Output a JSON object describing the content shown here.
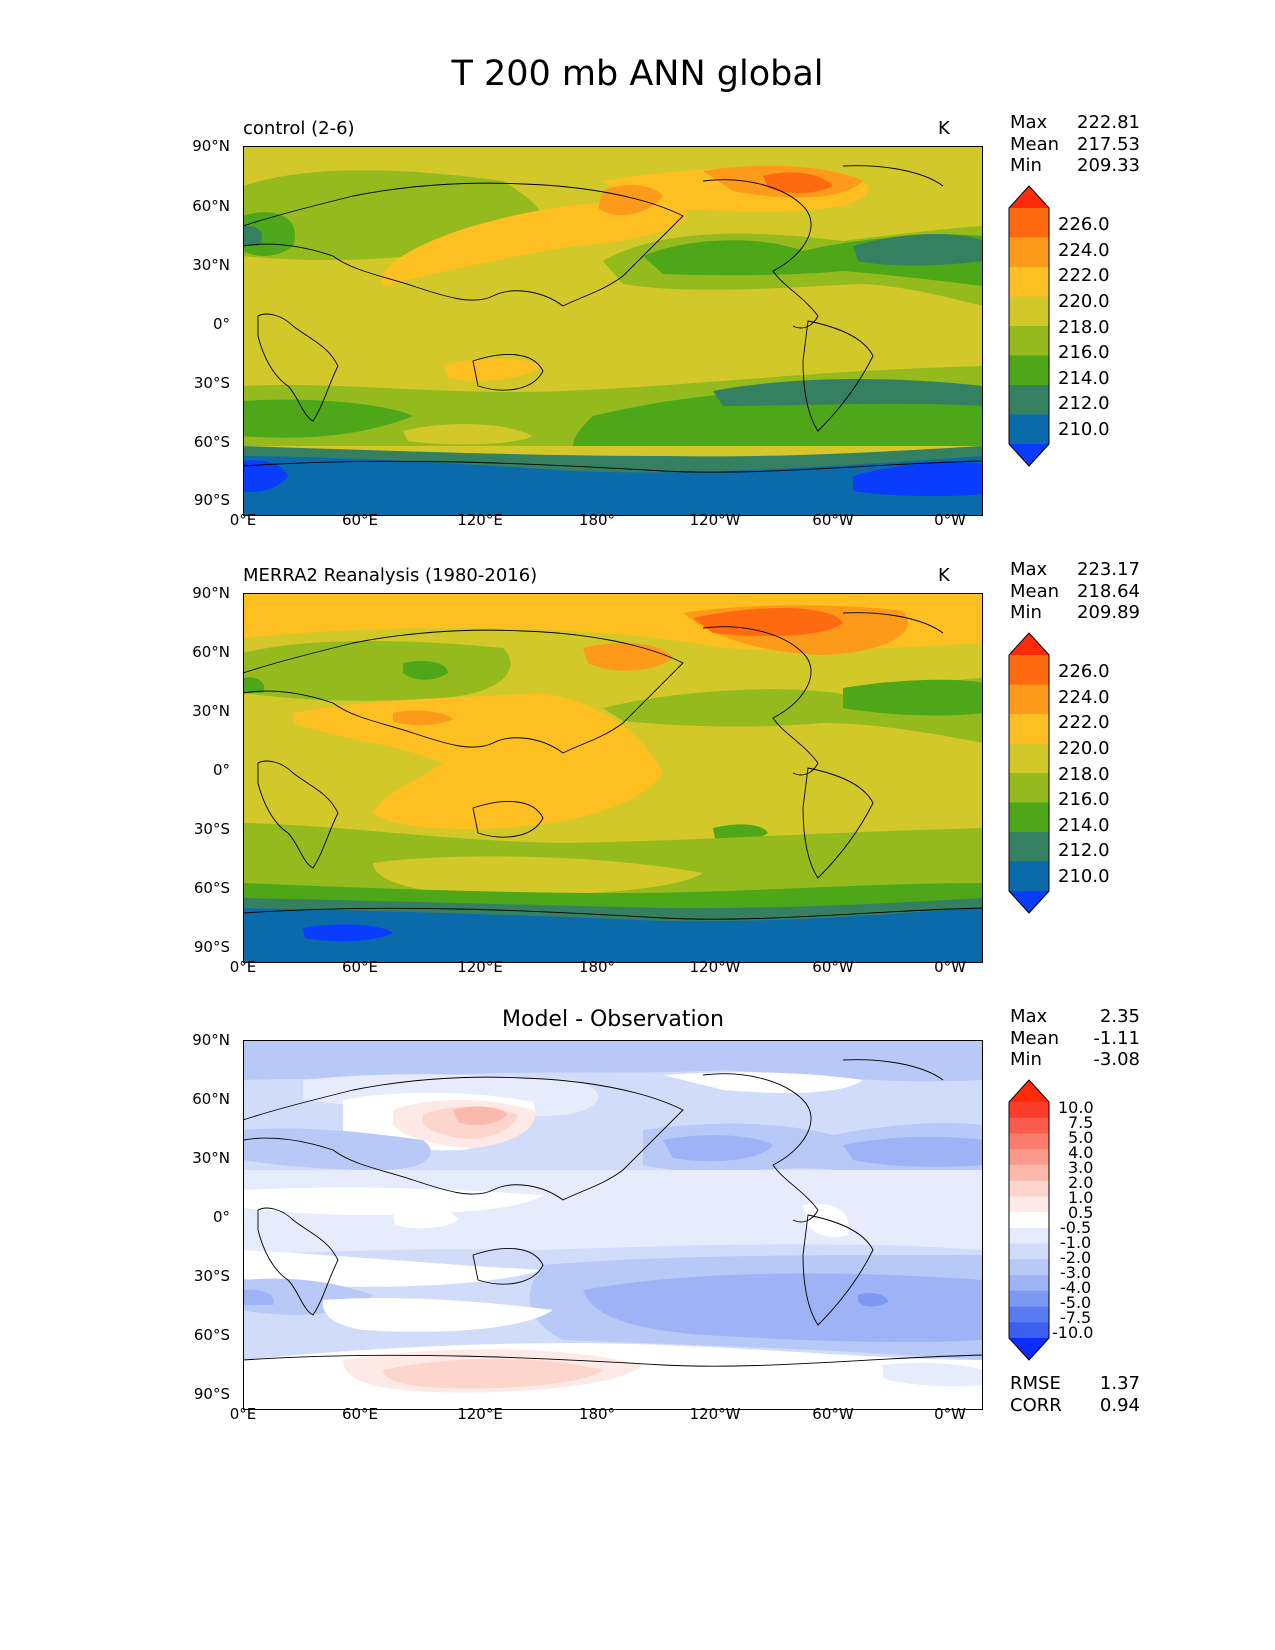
{
  "title": "T 200 mb ANN global",
  "axes": {
    "lat_ticks": [
      "90°N",
      "60°N",
      "30°N",
      "0°",
      "30°S",
      "60°S",
      "90°S"
    ],
    "lon_ticks": [
      "0°E",
      "60°E",
      "120°E",
      "180°",
      "120°W",
      "60°W",
      "0°W"
    ]
  },
  "panels": [
    {
      "left_title": "control (2-6)",
      "units": "K",
      "stats": {
        "max_label": "Max",
        "max": "222.81",
        "mean_label": "Mean",
        "mean": "217.53",
        "min_label": "Min",
        "min": "209.33"
      },
      "colorbar": {
        "labels": [
          "226.0",
          "224.0",
          "222.0",
          "220.0",
          "218.0",
          "216.0",
          "214.0",
          "212.0",
          "210.0"
        ],
        "colors": [
          "#ff2a0a",
          "#ff6a10",
          "#fd9a1a",
          "#fdc020",
          "#d2c82a",
          "#94ba1e",
          "#4ea619",
          "#358060",
          "#0a6aaa",
          "#0a3cff"
        ]
      }
    },
    {
      "left_title": "MERRA2 Reanalysis (1980-2016)",
      "units": "K",
      "stats": {
        "max_label": "Max",
        "max": "223.17",
        "mean_label": "Mean",
        "mean": "218.64",
        "min_label": "Min",
        "min": "209.89"
      },
      "colorbar": {
        "labels": [
          "226.0",
          "224.0",
          "222.0",
          "220.0",
          "218.0",
          "216.0",
          "214.0",
          "212.0",
          "210.0"
        ],
        "colors": [
          "#ff2a0a",
          "#ff6a10",
          "#fd9a1a",
          "#fdc020",
          "#d2c82a",
          "#94ba1e",
          "#4ea619",
          "#358060",
          "#0a6aaa",
          "#0a3cff"
        ]
      }
    },
    {
      "center_title": "Model - Observation",
      "stats": {
        "max_label": "Max",
        "max": "2.35",
        "mean_label": "Mean",
        "mean": "-1.11",
        "min_label": "Min",
        "min": "-3.08"
      },
      "colorbar": {
        "labels": [
          "10.0",
          "7.5",
          "5.0",
          "4.0",
          "3.0",
          "2.0",
          "1.0",
          "0.5",
          "-0.5",
          "-1.0",
          "-2.0",
          "-3.0",
          "-4.0",
          "-5.0",
          "-7.5",
          "-10.0"
        ],
        "colors": [
          "#ff2a0a",
          "#fb3b2a",
          "#f95c4c",
          "#f97c6c",
          "#fa9a8c",
          "#fbb8ac",
          "#fcd6cc",
          "#fdeae6",
          "#ffffff",
          "#e6ecfb",
          "#d0dcfa",
          "#b8c9f8",
          "#9db3f6",
          "#7d99f4",
          "#5a7bf2",
          "#3d5ff0",
          "#0a2cff"
        ]
      },
      "metrics": {
        "rmse_label": "RMSE",
        "rmse": "1.37",
        "corr_label": "CORR",
        "corr": "0.94"
      }
    }
  ]
}
